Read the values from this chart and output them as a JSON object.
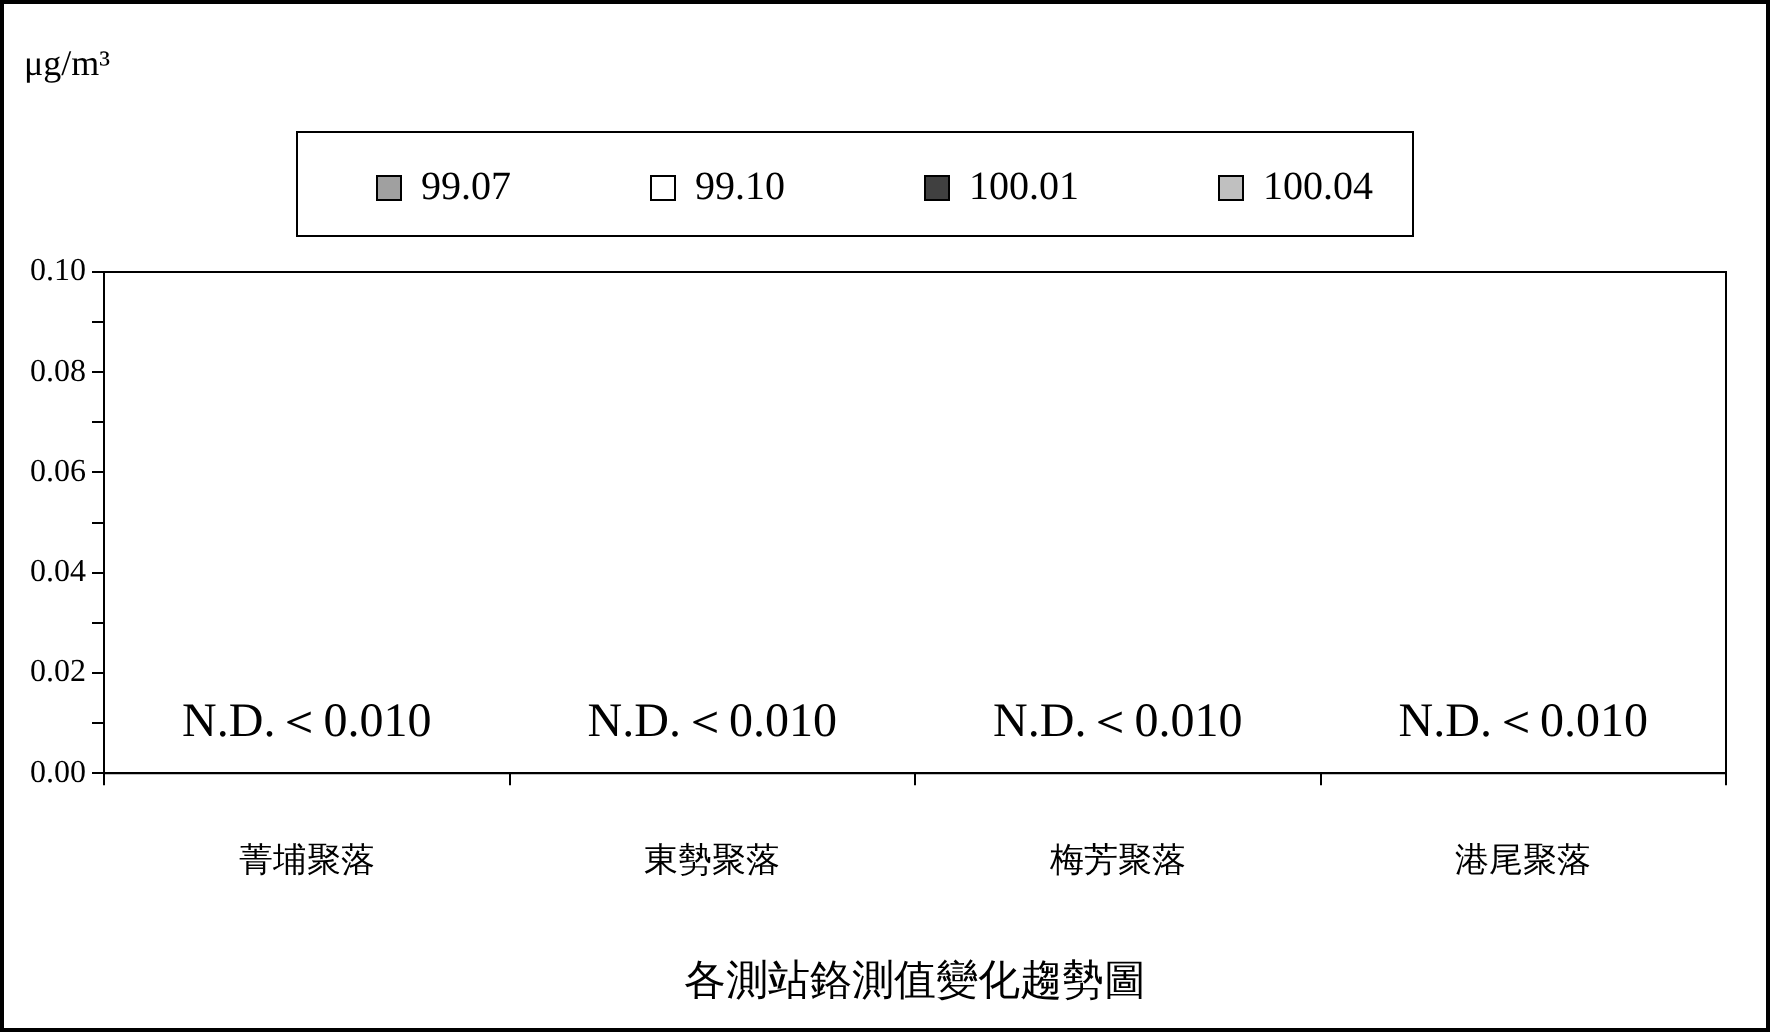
{
  "chart_data": {
    "type": "bar",
    "title": "各測站鉻測值變化趨勢圖",
    "ylabel": "μg/m³",
    "categories": [
      "菁埔聚落",
      "東勢聚落",
      "梅芳聚落",
      "港尾聚落"
    ],
    "series": [
      {
        "name": "99.07",
        "color": "#a0a0a0",
        "values": [
          null,
          null,
          null,
          null
        ]
      },
      {
        "name": "99.10",
        "color": "#ffffff",
        "values": [
          null,
          null,
          null,
          null
        ]
      },
      {
        "name": "100.01",
        "color": "#404040",
        "values": [
          null,
          null,
          null,
          null
        ]
      },
      {
        "name": "100.04",
        "color": "#c0c0c0",
        "values": [
          null,
          null,
          null,
          null
        ]
      }
    ],
    "ylim": [
      0,
      0.1
    ],
    "yticks": [
      {
        "value": 0,
        "label": "0.00"
      },
      {
        "value": 0.01,
        "label": null
      },
      {
        "value": 0.02,
        "label": "0.02"
      },
      {
        "value": 0.03,
        "label": null
      },
      {
        "value": 0.04,
        "label": "0.04"
      },
      {
        "value": 0.05,
        "label": null
      },
      {
        "value": 0.06,
        "label": "0.06"
      },
      {
        "value": 0.07,
        "label": null
      },
      {
        "value": 0.08,
        "label": "0.08"
      },
      {
        "value": 0.09,
        "label": null
      },
      {
        "value": 0.1,
        "label": "0.10"
      }
    ],
    "annotations": [
      "N.D.＜0.010",
      "N.D.＜0.010",
      "N.D.＜0.010",
      "N.D.＜0.010"
    ],
    "grid": false,
    "legend": "top"
  }
}
